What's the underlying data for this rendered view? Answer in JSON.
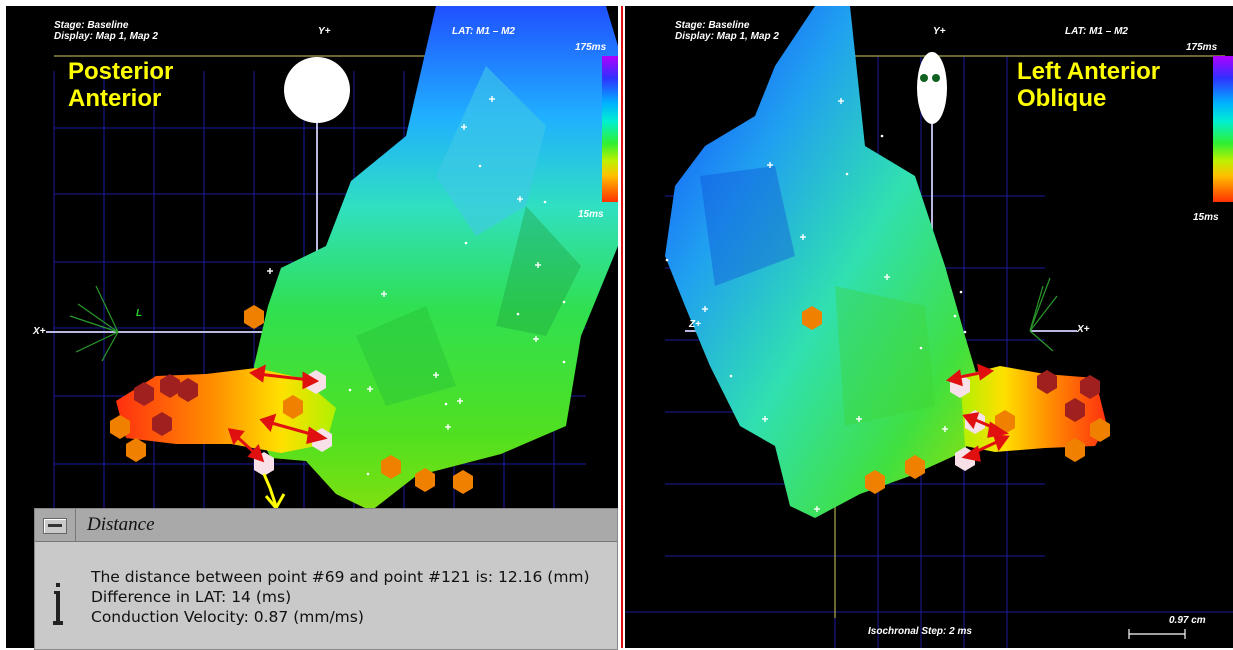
{
  "left_view": {
    "stage": "Stage: Baseline",
    "display": "Display: Map 1, Map 2",
    "axis_y": "Y+",
    "lat": "LAT: M1 – M2",
    "scale_max": "175ms",
    "scale_min": "15ms",
    "view_label": "Posterior\nAnterior",
    "axis_x": "X+",
    "axis_l": "L"
  },
  "right_view": {
    "stage": "Stage: Baseline",
    "display": "Display: Map 1, Map 2",
    "axis_y": "Y+",
    "lat": "LAT: M1 – M2",
    "scale_max": "175ms",
    "scale_min": "15ms",
    "view_label": "Left Anterior\nOblique",
    "axis_z": "Z+",
    "axis_x": "X+",
    "isochronal_step": "Isochronal Step: 2 ms",
    "scale_bar": "0.97 cm"
  },
  "dialog": {
    "title": "Distance",
    "line1": "The distance between point #69 and point #121 is: 12.16 (mm)",
    "line2": "Difference in LAT: 14 (ms)",
    "line3": "Conduction Velocity: 0.87 (mm/ms)"
  },
  "colors": {
    "grid": "#1a1aa0",
    "arrow": "#e01010",
    "label": "#ffff00",
    "divider": "#e01010"
  }
}
